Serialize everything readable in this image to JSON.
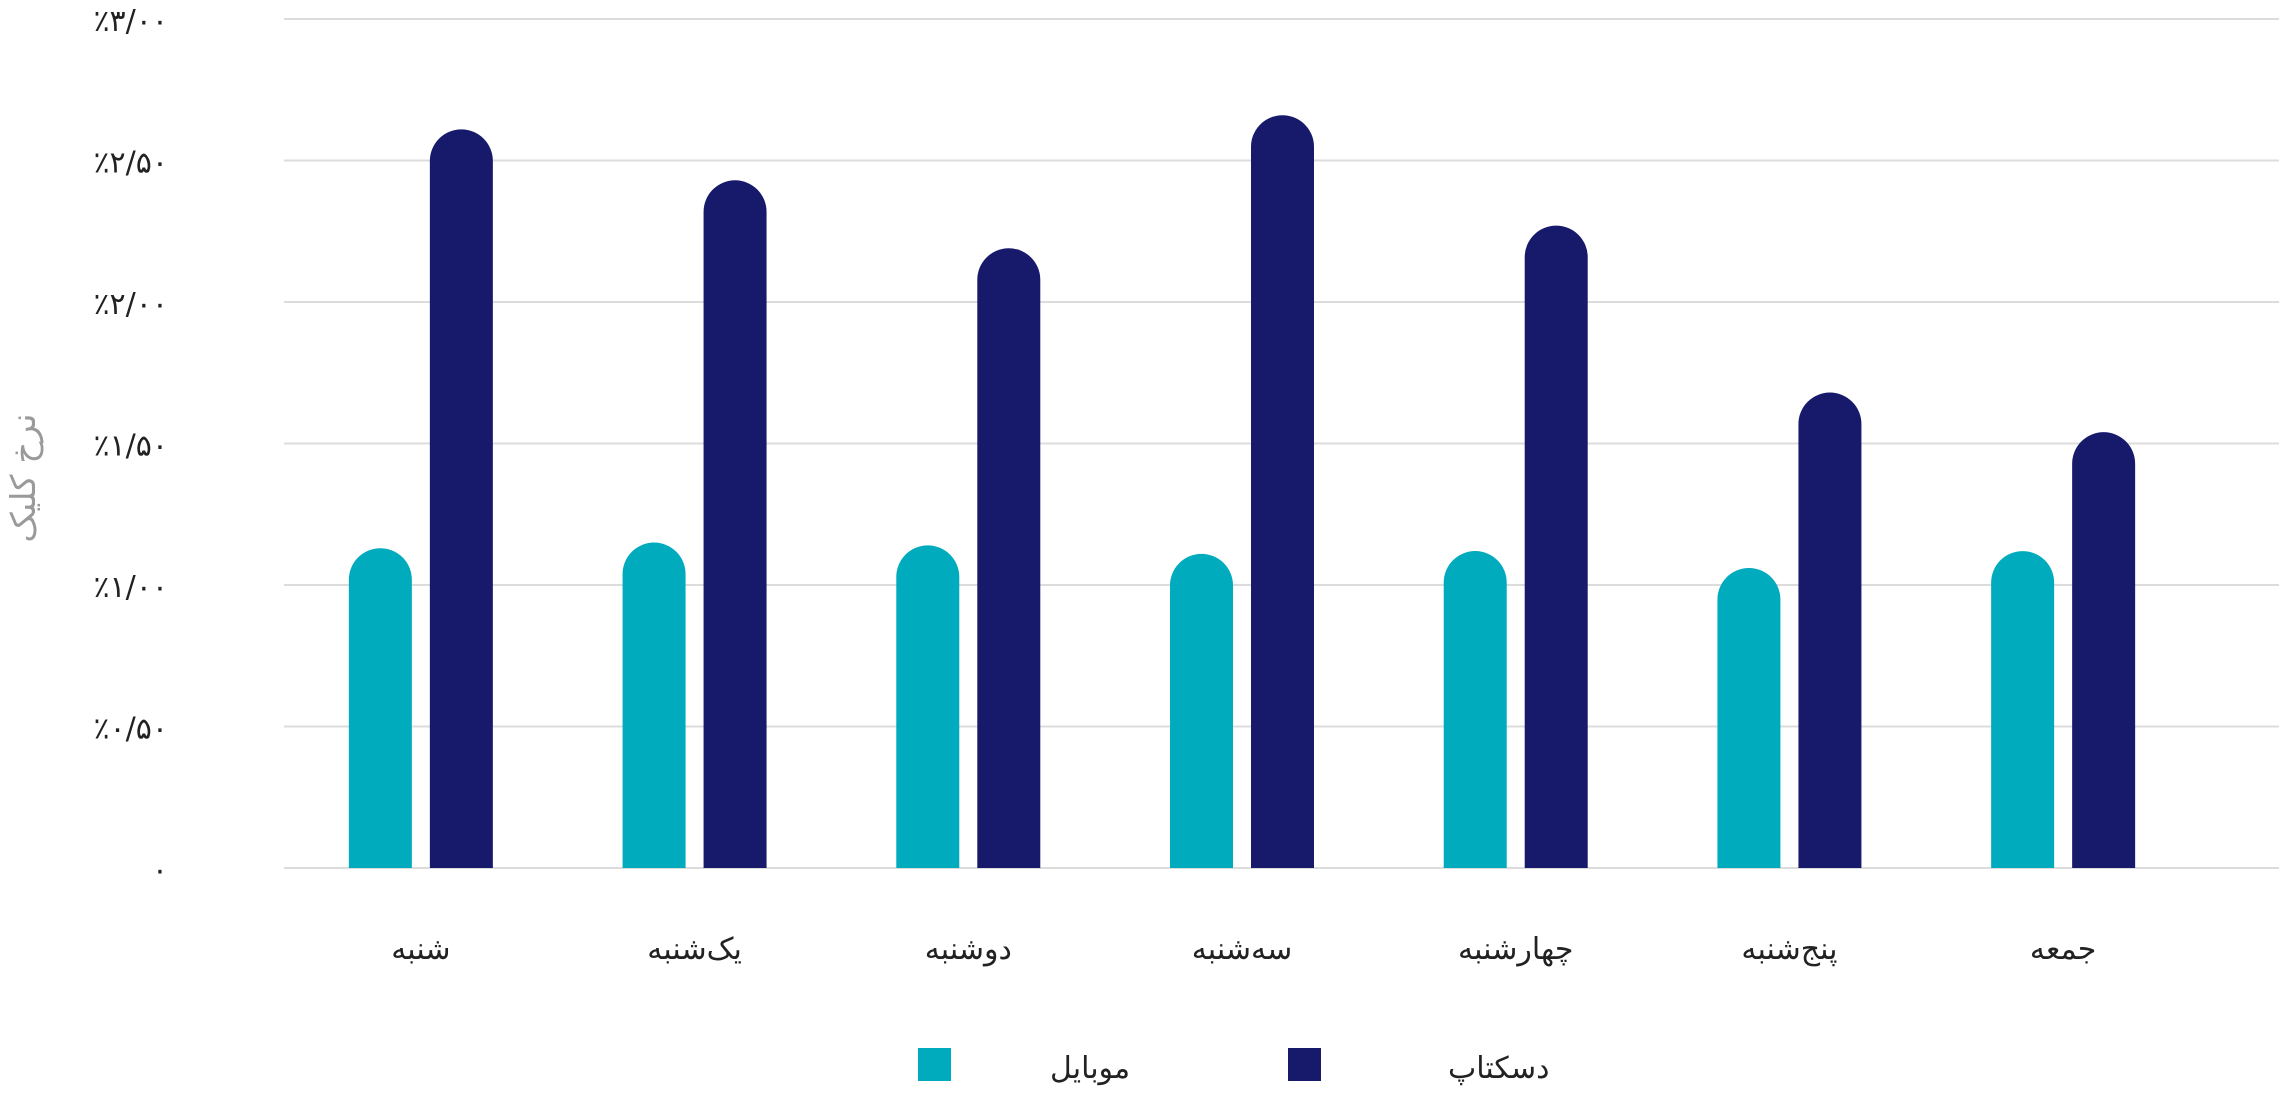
{
  "chart_data": {
    "type": "bar",
    "ylabel": "نرخ کلیک",
    "ylim": [
      0,
      3.0
    ],
    "y_ticks": [
      {
        "value": 0,
        "label": "۰"
      },
      {
        "value": 0.5,
        "label": "٪۰/۵۰"
      },
      {
        "value": 1.0,
        "label": "٪۱/۰۰"
      },
      {
        "value": 1.5,
        "label": "٪۱/۵۰"
      },
      {
        "value": 2.0,
        "label": "٪۲/۰۰"
      },
      {
        "value": 2.5,
        "label": "٪۲/۵۰"
      },
      {
        "value": 3.0,
        "label": "٪۳/۰۰"
      }
    ],
    "categories": [
      "شنبه",
      "یک‌شنبه",
      "دوشنبه",
      "سه‌شنبه",
      "چهارشنبه",
      "پنج‌شنبه",
      "جمعه"
    ],
    "series": [
      {
        "name": "موبایل",
        "color": "#00ABBD",
        "values": [
          1.13,
          1.15,
          1.14,
          1.11,
          1.12,
          1.06,
          1.12
        ]
      },
      {
        "name": "دسکتاپ",
        "color": "#171A6B",
        "values": [
          2.61,
          2.43,
          2.19,
          2.66,
          2.27,
          1.68,
          1.54
        ]
      }
    ],
    "grid": true,
    "legend_position": "bottom"
  }
}
